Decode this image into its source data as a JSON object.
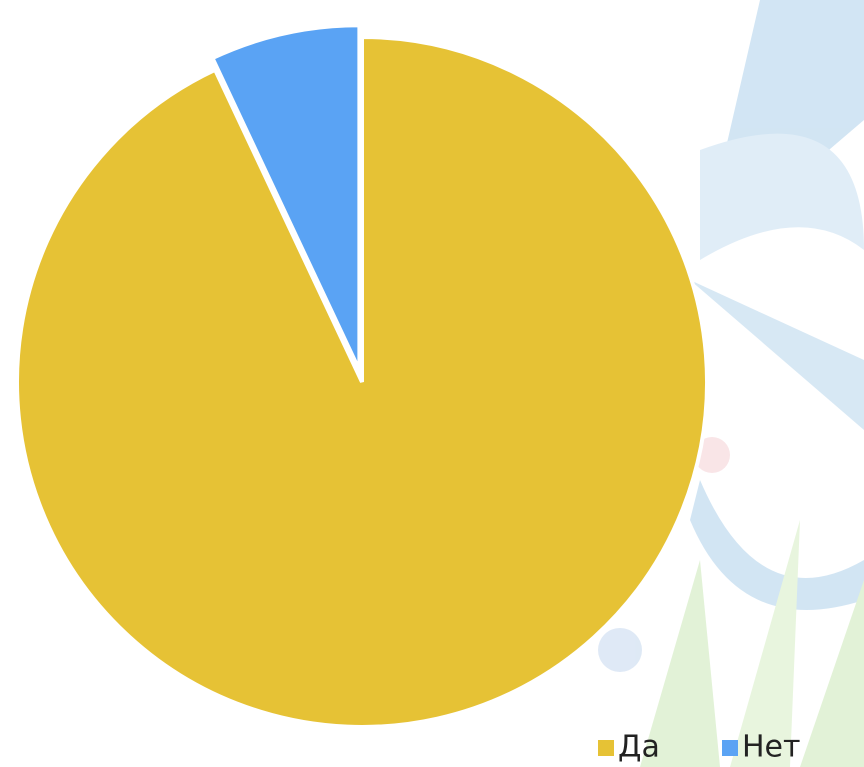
{
  "chart_data": {
    "type": "pie",
    "categories": [
      "Да",
      "Нет"
    ],
    "values": [
      93,
      7
    ],
    "colors": [
      "#e6c235",
      "#5aa3f4"
    ],
    "exploded": [
      false,
      true
    ],
    "legend": "bottom-right"
  }
}
